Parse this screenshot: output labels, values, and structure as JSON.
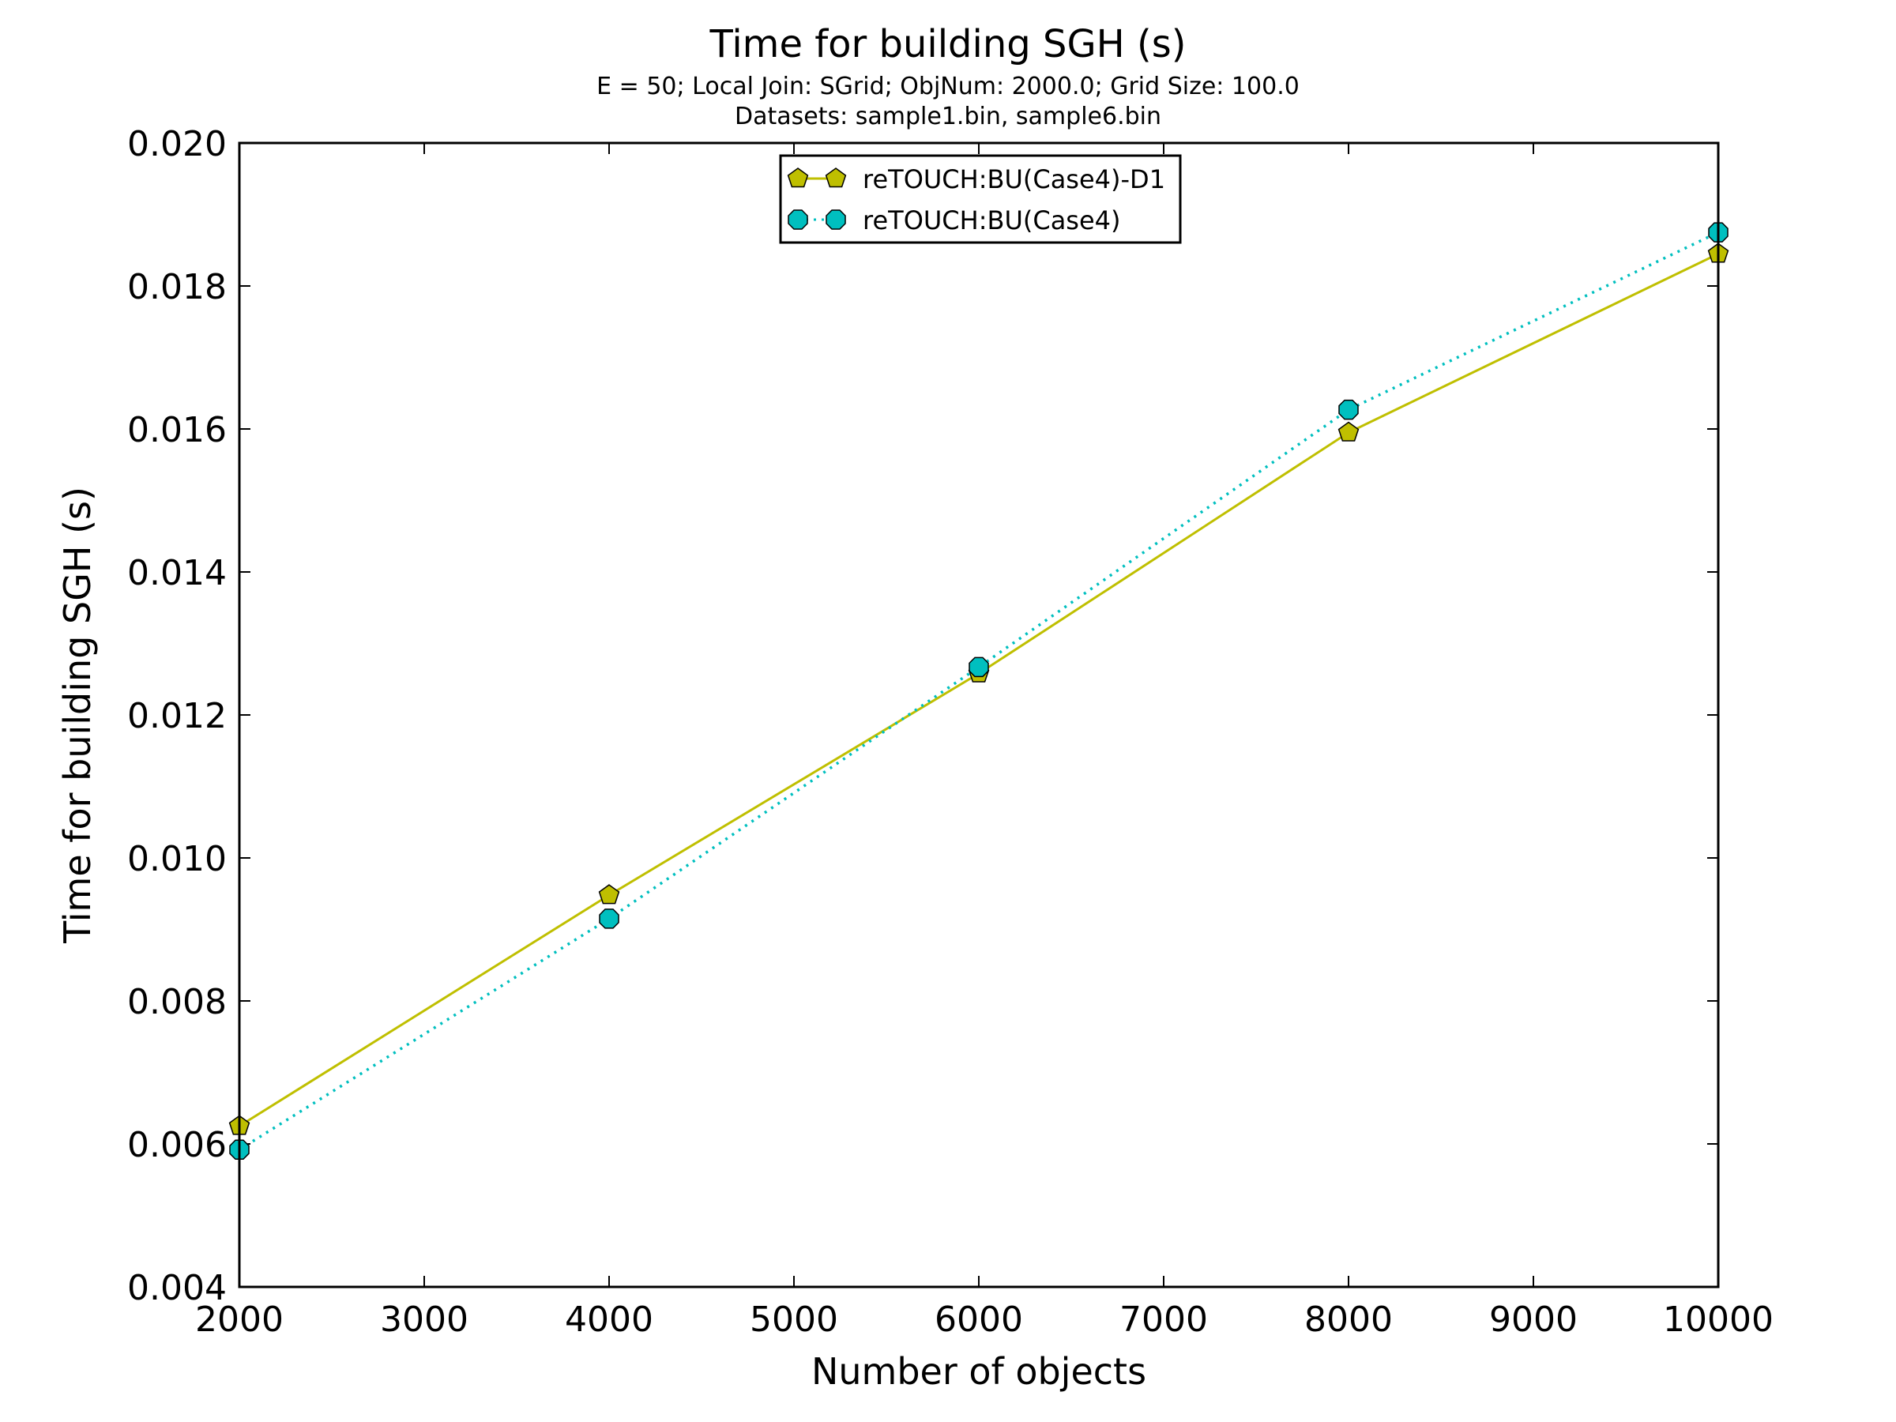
{
  "chart_data": {
    "type": "line",
    "title": "Time for building SGH (s)",
    "subtitle_lines": [
      "E = 50; Local Join: SGrid; ObjNum: 2000.0; Grid Size: 100.0",
      "Datasets: sample1.bin, sample6.bin"
    ],
    "xlabel": "Number of objects",
    "ylabel": "Time for building SGH (s)",
    "xlim": [
      2000,
      10000
    ],
    "ylim": [
      0.004,
      0.02
    ],
    "x_ticks": [
      "2000",
      "3000",
      "4000",
      "5000",
      "6000",
      "7000",
      "8000",
      "9000",
      "10000"
    ],
    "y_ticks": [
      "0.004",
      "0.006",
      "0.008",
      "0.010",
      "0.012",
      "0.014",
      "0.016",
      "0.018",
      "0.020"
    ],
    "grid": false,
    "legend_position": "top-center",
    "x": [
      2000,
      4000,
      6000,
      8000,
      10000
    ],
    "series": [
      {
        "name": "reTOUCH:BU(Case4)-D1",
        "values": [
          0.00625,
          0.00948,
          0.01258,
          0.01595,
          0.01845
        ],
        "color": "#bfbf00",
        "line_style": "solid",
        "marker": "pentagon"
      },
      {
        "name": "reTOUCH:BU(Case4)",
        "values": [
          0.00592,
          0.00915,
          0.01267,
          0.01627,
          0.01875
        ],
        "color": "#00bfbf",
        "line_style": "dotted",
        "marker": "octagon"
      }
    ]
  }
}
